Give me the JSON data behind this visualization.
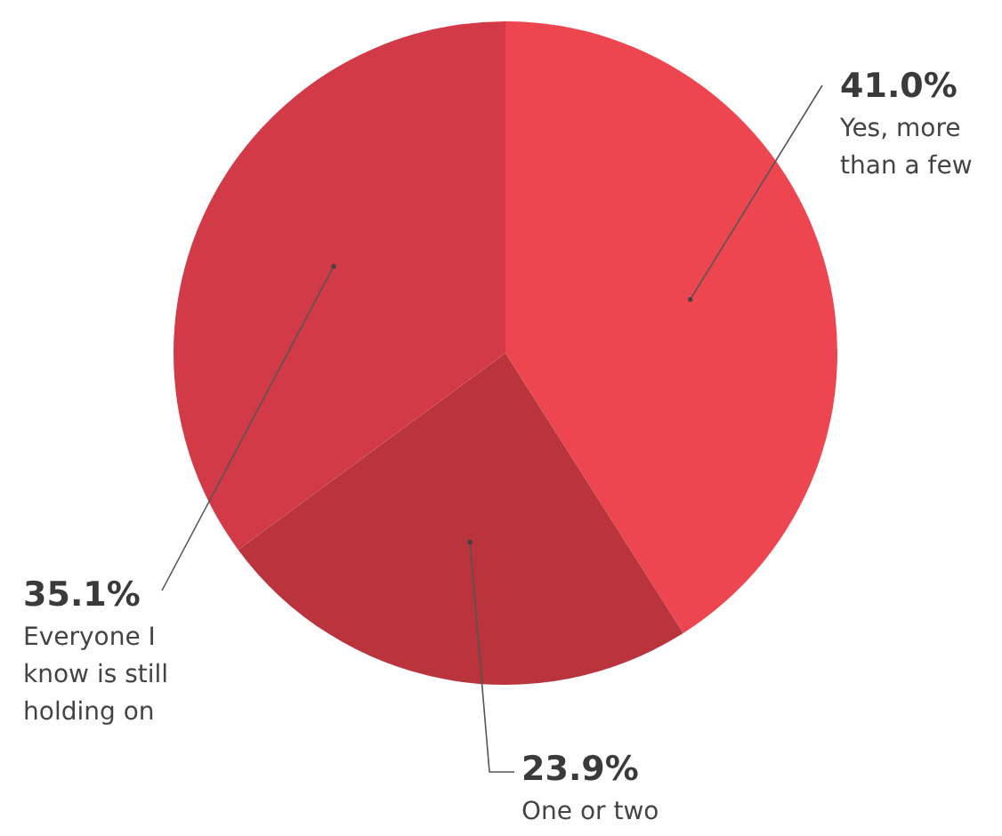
{
  "chart_data": {
    "type": "pie",
    "categories": [
      "Yes, more than a few",
      "One or two",
      "Everyone I know is still holding on"
    ],
    "values": [
      41.0,
      23.9,
      35.1
    ],
    "value_labels": [
      "41.0%",
      "23.9%",
      "35.1%"
    ],
    "colors": [
      "#ee4650",
      "#b9343d",
      "#d23a48"
    ],
    "legend": false
  }
}
